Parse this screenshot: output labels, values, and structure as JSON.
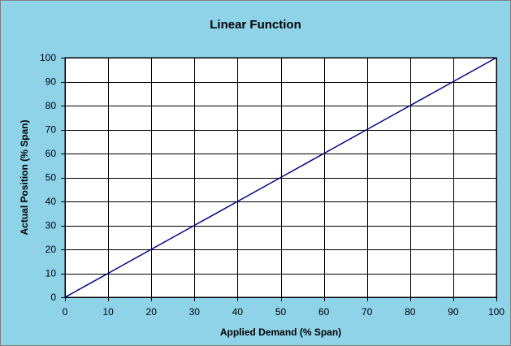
{
  "chart_data": {
    "type": "line",
    "title": "Linear Function",
    "xlabel": "Applied Demand (% Span)",
    "ylabel": "Actual Position (% Span)",
    "xlim": [
      0,
      100
    ],
    "ylim": [
      0,
      100
    ],
    "xticks": [
      0,
      10,
      20,
      30,
      40,
      50,
      60,
      70,
      80,
      90,
      100
    ],
    "yticks": [
      0,
      10,
      20,
      30,
      40,
      50,
      60,
      70,
      80,
      90,
      100
    ],
    "grid": true,
    "legend": "none",
    "series": [
      {
        "x": [
          0,
          10,
          20,
          30,
          40,
          50,
          60,
          70,
          80,
          90,
          100
        ],
        "y": [
          0,
          10,
          20,
          30,
          40,
          50,
          60,
          70,
          80,
          90,
          100
        ]
      }
    ],
    "colors": {
      "background": "#8fd3e8",
      "plot_area": "#ffffff",
      "grid": "#000000",
      "line": "#000080"
    }
  }
}
